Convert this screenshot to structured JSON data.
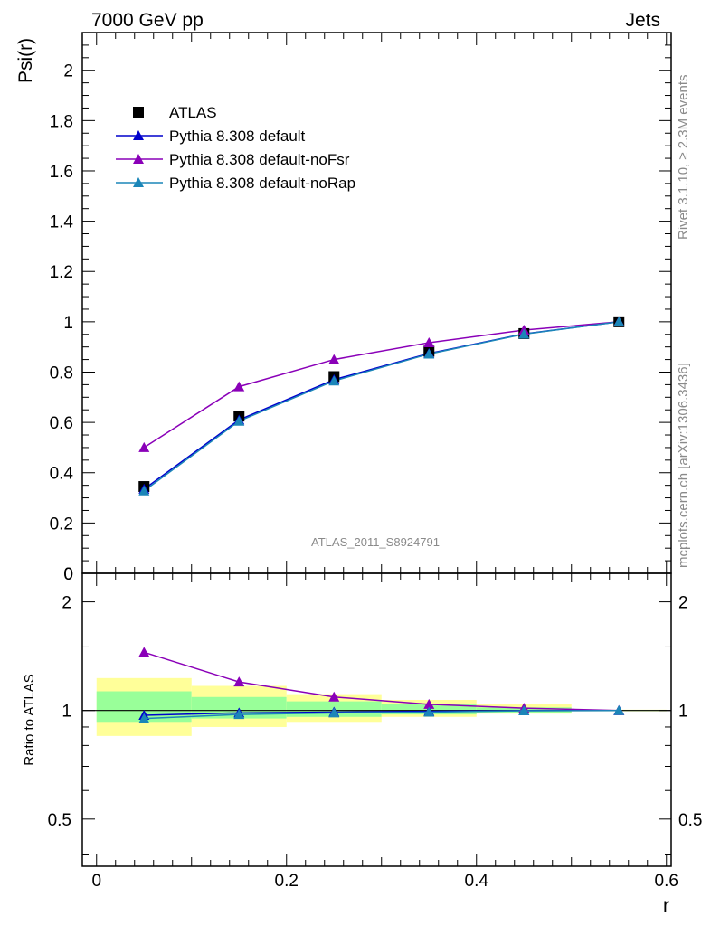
{
  "header": {
    "left": "7000 GeV pp",
    "right": "Jets"
  },
  "side_text": {
    "top": "Rivet 3.1.10, ≥ 2.3M events",
    "bottom": "mcplots.cern.ch [arXiv:1306.3436]"
  },
  "watermark": "ATLAS_2011_S8924791",
  "colors": {
    "atlas": "#000000",
    "default": "#0000cc",
    "noFsr": "#8a00b8",
    "noRap": "#1b86b8",
    "band_stat_sys": "#ffff99",
    "band_stat": "#99ff99"
  },
  "chart_data": [
    {
      "type": "line",
      "ylabel": "Psi(r)",
      "xlim": [
        -0.015,
        0.605
      ],
      "ylim": [
        0,
        2.15
      ],
      "yticks": [
        "0",
        "0.2",
        "0.4",
        "0.6",
        "0.8",
        "1",
        "1.2",
        "1.4",
        "1.6",
        "1.8",
        "2"
      ],
      "x": [
        0.05,
        0.15,
        0.25,
        0.35,
        0.45,
        0.55
      ],
      "legend_position": "top-left",
      "series": [
        {
          "name": "ATLAS",
          "marker": "square",
          "values": [
            0.345,
            0.625,
            0.782,
            0.883,
            0.953,
            1.0
          ]
        },
        {
          "name": "Pythia 8.308 default",
          "marker": "triangle",
          "values": [
            0.335,
            0.61,
            0.77,
            0.874,
            0.952,
            1.0
          ]
        },
        {
          "name": "Pythia 8.308 default-noFsr",
          "marker": "triangle",
          "values": [
            0.5,
            0.742,
            0.85,
            0.917,
            0.967,
            1.0
          ]
        },
        {
          "name": "Pythia 8.308 default-noRap",
          "marker": "triangle",
          "values": [
            0.328,
            0.605,
            0.765,
            0.872,
            0.951,
            1.0
          ]
        }
      ]
    },
    {
      "type": "line",
      "ylabel": "Ratio to ATLAS",
      "xlabel": "r",
      "ylim": [
        0.37,
        2.4
      ],
      "yscale": "log",
      "yticks": [
        "0.5",
        "1",
        "2"
      ],
      "xticks": [
        "0",
        "0.2",
        "0.4",
        "0.6"
      ],
      "x": [
        0.05,
        0.15,
        0.25,
        0.35,
        0.45,
        0.55
      ],
      "bands": {
        "edges": [
          0.0,
          0.1,
          0.2,
          0.3,
          0.4,
          0.5,
          0.6
        ],
        "stat_sys": [
          [
            0.85,
            1.23
          ],
          [
            0.9,
            1.17
          ],
          [
            0.93,
            1.11
          ],
          [
            0.96,
            1.07
          ],
          [
            0.98,
            1.04
          ],
          [
            0.995,
            1.005
          ]
        ],
        "stat": [
          [
            0.93,
            1.13
          ],
          [
            0.95,
            1.09
          ],
          [
            0.96,
            1.06
          ],
          [
            0.975,
            1.04
          ],
          [
            0.985,
            1.02
          ],
          [
            0.997,
            1.003
          ]
        ]
      },
      "series": [
        {
          "name": "Pythia 8.308 default",
          "values": [
            0.97,
            0.985,
            0.99,
            0.995,
            0.999,
            1.0
          ]
        },
        {
          "name": "Pythia 8.308 default-noFsr",
          "values": [
            1.45,
            1.2,
            1.09,
            1.04,
            1.015,
            1.0
          ]
        },
        {
          "name": "Pythia 8.308 default-noRap",
          "values": [
            0.95,
            0.975,
            0.985,
            0.99,
            0.998,
            1.0
          ]
        }
      ]
    }
  ]
}
